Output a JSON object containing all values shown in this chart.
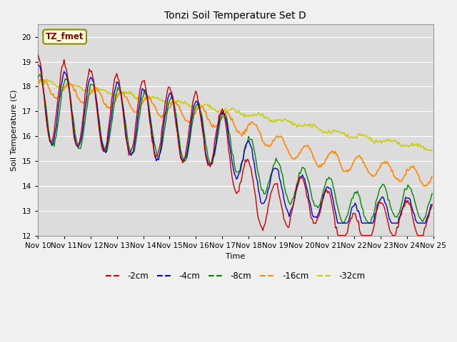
{
  "title": "Tonzi Soil Temperature Set D",
  "xlabel": "Time",
  "ylabel": "Soil Temperature (C)",
  "annotation": "TZ_fmet",
  "ylim": [
    12.0,
    20.5
  ],
  "line_colors": {
    "-2cm": "#cc0000",
    "-4cm": "#0000cc",
    "-8cm": "#008800",
    "-16cm": "#ff8800",
    "-32cm": "#cccc00"
  },
  "legend_labels": [
    "-2cm",
    "-4cm",
    "-8cm",
    "-16cm",
    "-32cm"
  ],
  "fig_bg": "#f0f0f0",
  "plot_bg": "#dcdcdc",
  "grid_color": "#ffffff",
  "n_hours": 360,
  "n_days": 15
}
